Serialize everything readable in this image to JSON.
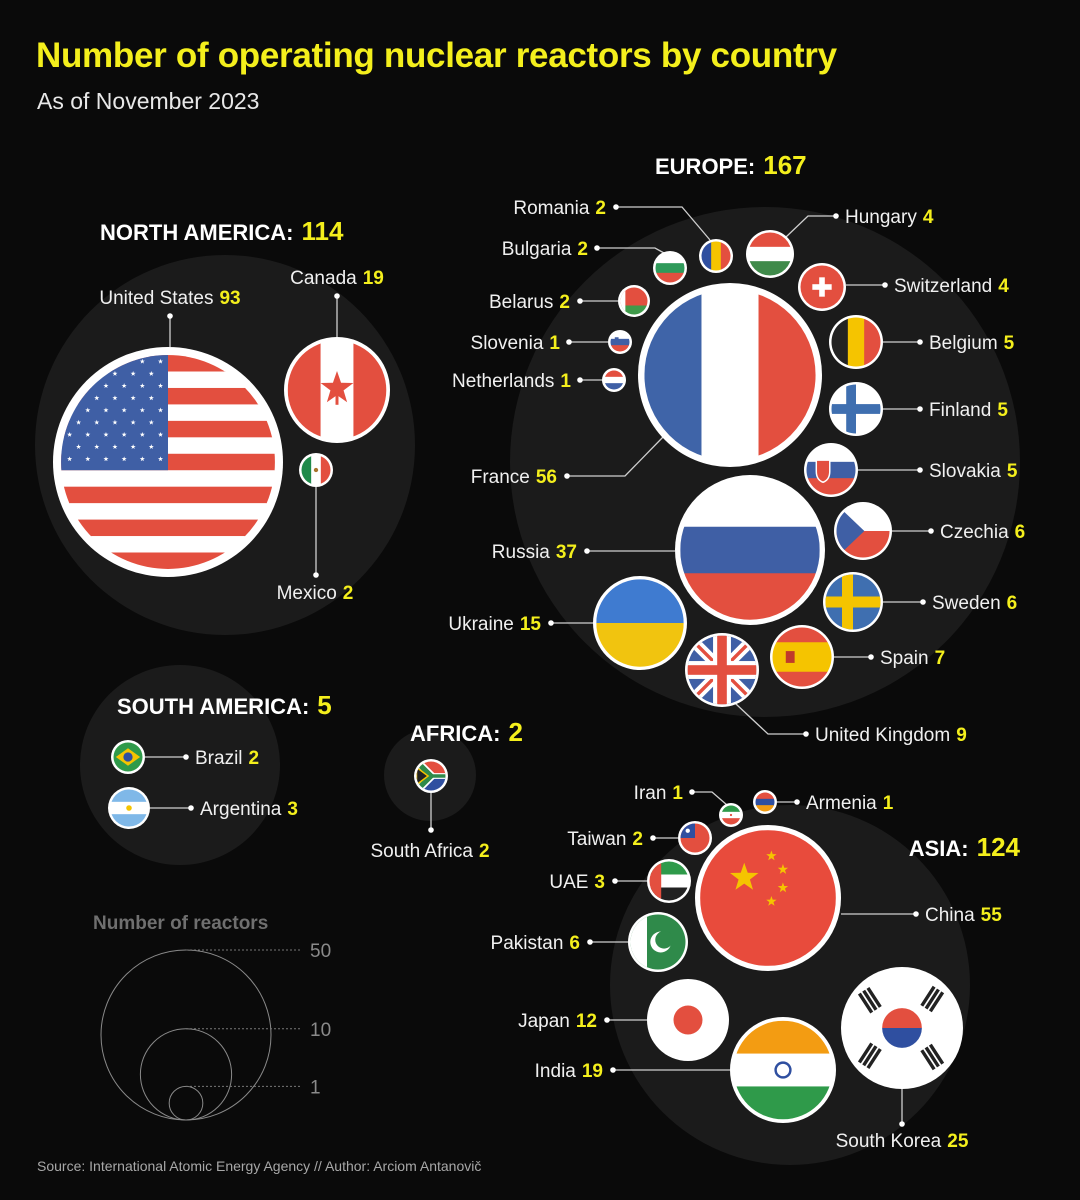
{
  "title": "Number of operating nuclear reactors by country",
  "subtitle": "As of November 2023",
  "source": "Source: International Atomic Energy Agency // Author: Arciom Antanovič",
  "colors": {
    "accent": "#f4ef1c",
    "background": "#0a0a0a",
    "region_circle": "#1b1b1b",
    "legend": "#777777"
  },
  "legend": {
    "title": "Number of reactors",
    "values": [
      50,
      10,
      1
    ]
  },
  "chart_data": {
    "type": "bubble",
    "title": "Number of operating nuclear reactors by country",
    "subtitle": "As of November 2023",
    "regions": [
      {
        "id": "na",
        "title": "NORTH AMERICA:",
        "total": 114,
        "countries": [
          {
            "name": "United States",
            "value": 93,
            "flag": "us"
          },
          {
            "name": "Canada",
            "value": 19,
            "flag": "ca"
          },
          {
            "name": "Mexico",
            "value": 2,
            "flag": "mx"
          }
        ]
      },
      {
        "id": "eu",
        "title": "EUROPE:",
        "total": 167,
        "countries": [
          {
            "name": "France",
            "value": 56,
            "flag": "fr"
          },
          {
            "name": "Russia",
            "value": 37,
            "flag": "ru"
          },
          {
            "name": "Ukraine",
            "value": 15,
            "flag": "ua"
          },
          {
            "name": "United Kingdom",
            "value": 9,
            "flag": "gb"
          },
          {
            "name": "Spain",
            "value": 7,
            "flag": "es"
          },
          {
            "name": "Sweden",
            "value": 6,
            "flag": "se"
          },
          {
            "name": "Czechia",
            "value": 6,
            "flag": "cz"
          },
          {
            "name": "Slovakia",
            "value": 5,
            "flag": "sk"
          },
          {
            "name": "Finland",
            "value": 5,
            "flag": "fi"
          },
          {
            "name": "Belgium",
            "value": 5,
            "flag": "be"
          },
          {
            "name": "Switzerland",
            "value": 4,
            "flag": "ch"
          },
          {
            "name": "Hungary",
            "value": 4,
            "flag": "hu"
          },
          {
            "name": "Romania",
            "value": 2,
            "flag": "ro"
          },
          {
            "name": "Bulgaria",
            "value": 2,
            "flag": "bg"
          },
          {
            "name": "Belarus",
            "value": 2,
            "flag": "by"
          },
          {
            "name": "Slovenia",
            "value": 1,
            "flag": "si"
          },
          {
            "name": "Netherlands",
            "value": 1,
            "flag": "nl"
          }
        ]
      },
      {
        "id": "sa",
        "title": "SOUTH AMERICA:",
        "total": 5,
        "countries": [
          {
            "name": "Brazil",
            "value": 2,
            "flag": "br"
          },
          {
            "name": "Argentina",
            "value": 3,
            "flag": "ar"
          }
        ]
      },
      {
        "id": "af",
        "title": "AFRICA:",
        "total": 2,
        "countries": [
          {
            "name": "South Africa",
            "value": 2,
            "flag": "za"
          }
        ]
      },
      {
        "id": "as",
        "title": "ASIA:",
        "total": 124,
        "countries": [
          {
            "name": "China",
            "value": 55,
            "flag": "cn"
          },
          {
            "name": "South Korea",
            "value": 25,
            "flag": "kr"
          },
          {
            "name": "India",
            "value": 19,
            "flag": "in"
          },
          {
            "name": "Japan",
            "value": 12,
            "flag": "jp"
          },
          {
            "name": "Pakistan",
            "value": 6,
            "flag": "pk"
          },
          {
            "name": "UAE",
            "value": 3,
            "flag": "ae"
          },
          {
            "name": "Taiwan",
            "value": 2,
            "flag": "tw"
          },
          {
            "name": "Iran",
            "value": 1,
            "flag": "ir"
          },
          {
            "name": "Armenia",
            "value": 1,
            "flag": "am"
          }
        ]
      }
    ]
  }
}
